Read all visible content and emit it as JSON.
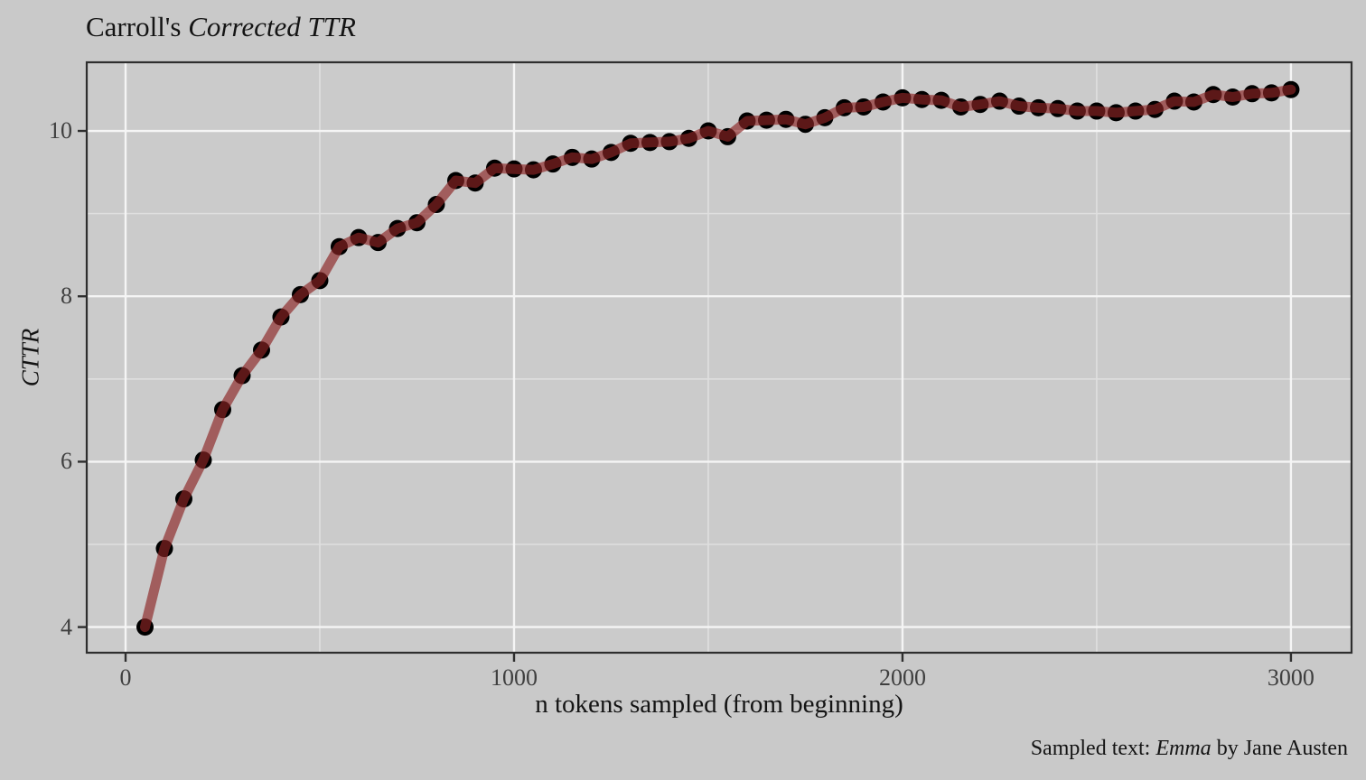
{
  "title": {
    "prefix": "Carroll's ",
    "italic": "Corrected TTR"
  },
  "caption": {
    "prefix": "Sampled text: ",
    "italic": "Emma",
    "suffix": " by Jane Austen"
  },
  "axes": {
    "x_label": "n tokens sampled (from beginning)",
    "y_label": "CTTR"
  },
  "colors": {
    "outer_background": "#c9c9c9",
    "panel_background": "#cbcbcb",
    "major_gridline": "#f5f5f5",
    "minor_gridline": "#dfdfdf",
    "panel_border": "#2e2e2e",
    "tick_mark": "#2e2e2e",
    "tick_label": "#3f3f3f",
    "text": "#141414",
    "line": "#8b2424",
    "point": "#000000"
  },
  "chart_data": {
    "type": "line",
    "title": "Carroll's Corrected TTR",
    "xlabel": "n tokens sampled (from beginning)",
    "ylabel": "CTTR",
    "caption": "Sampled text: Emma by Jane Austen",
    "legend": false,
    "grid": true,
    "x": [
      50,
      100,
      150,
      200,
      250,
      300,
      350,
      400,
      450,
      500,
      550,
      600,
      650,
      700,
      750,
      800,
      850,
      900,
      950,
      1000,
      1050,
      1100,
      1150,
      1200,
      1250,
      1300,
      1350,
      1400,
      1450,
      1500,
      1550,
      1600,
      1650,
      1700,
      1750,
      1800,
      1850,
      1900,
      1950,
      2000,
      2050,
      2100,
      2150,
      2200,
      2250,
      2300,
      2350,
      2400,
      2450,
      2500,
      2550,
      2600,
      2650,
      2700,
      2750,
      2800,
      2850,
      2900,
      2950,
      3000
    ],
    "y": [
      4.0,
      4.95,
      5.55,
      6.02,
      6.63,
      7.04,
      7.35,
      7.75,
      8.02,
      8.19,
      8.6,
      8.71,
      8.65,
      8.82,
      8.89,
      9.11,
      9.4,
      9.37,
      9.55,
      9.54,
      9.53,
      9.6,
      9.68,
      9.66,
      9.74,
      9.85,
      9.86,
      9.87,
      9.91,
      10.0,
      9.93,
      10.12,
      10.13,
      10.14,
      10.08,
      10.16,
      10.28,
      10.29,
      10.35,
      10.4,
      10.38,
      10.37,
      10.29,
      10.32,
      10.36,
      10.3,
      10.28,
      10.27,
      10.24,
      10.24,
      10.22,
      10.24,
      10.26,
      10.36,
      10.35,
      10.44,
      10.41,
      10.45,
      10.46,
      10.5
    ],
    "xlim": [
      -100,
      3156
    ],
    "ylim": [
      3.69,
      10.83
    ],
    "x_major_ticks": [
      0,
      1000,
      2000,
      3000
    ],
    "x_minor_gridlines": [
      500,
      1500,
      2500
    ],
    "y_major_ticks": [
      4,
      6,
      8,
      10
    ],
    "y_minor_gridlines": [
      5,
      7,
      9
    ],
    "line_opacity": 0.66,
    "line_width": 11,
    "point_radius": 9.5
  }
}
